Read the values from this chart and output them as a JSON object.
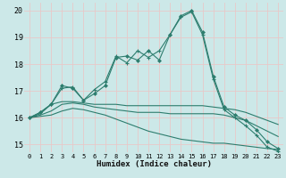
{
  "xlabel": "Humidex (Indice chaleur)",
  "background_color": "#cce8e8",
  "grid_color": "#e8c8c8",
  "line_color": "#2d7d6e",
  "xlim": [
    -0.5,
    23.5
  ],
  "ylim": [
    14.7,
    20.3
  ],
  "yticks": [
    15,
    16,
    17,
    18,
    19,
    20
  ],
  "xticks": [
    0,
    1,
    2,
    3,
    4,
    5,
    6,
    7,
    8,
    9,
    10,
    11,
    12,
    13,
    14,
    15,
    16,
    17,
    18,
    19,
    20,
    21,
    22,
    23
  ],
  "line1_x": [
    0,
    1,
    2,
    3,
    4,
    5,
    6,
    7,
    8,
    9,
    10,
    11,
    12,
    13,
    14,
    15,
    16,
    17,
    18,
    19,
    20,
    21,
    22,
    23
  ],
  "line1_y": [
    16.0,
    16.2,
    16.5,
    17.1,
    17.15,
    16.65,
    17.05,
    17.35,
    18.3,
    18.05,
    18.5,
    18.25,
    18.5,
    19.1,
    19.75,
    19.95,
    19.1,
    17.45,
    16.3,
    16.0,
    15.7,
    15.35,
    14.9,
    14.75
  ],
  "line1_has_markers": true,
  "line1_marker": "+",
  "line2_x": [
    0,
    1,
    2,
    3,
    4,
    5,
    6,
    7,
    8,
    9,
    10,
    11,
    12,
    13,
    14,
    15,
    16,
    17,
    18,
    19,
    20,
    21,
    22,
    23
  ],
  "line2_y": [
    16.0,
    16.2,
    16.5,
    17.2,
    17.1,
    16.65,
    16.9,
    17.2,
    18.25,
    18.3,
    18.15,
    18.5,
    18.15,
    19.1,
    19.8,
    20.0,
    19.2,
    17.55,
    16.4,
    16.1,
    15.9,
    15.55,
    15.1,
    14.85
  ],
  "line2_has_markers": true,
  "line2_marker": "D",
  "line3_x": [
    0,
    1,
    2,
    3,
    4,
    5,
    6,
    7,
    8,
    9,
    10,
    11,
    12,
    13,
    14,
    15,
    16,
    17,
    18,
    19,
    20,
    21,
    22,
    23
  ],
  "line3_y": [
    16.0,
    16.15,
    16.5,
    16.6,
    16.6,
    16.55,
    16.5,
    16.5,
    16.5,
    16.45,
    16.45,
    16.45,
    16.45,
    16.45,
    16.45,
    16.45,
    16.45,
    16.4,
    16.35,
    16.3,
    16.2,
    16.05,
    15.9,
    15.75
  ],
  "line3_has_markers": false,
  "line4_x": [
    0,
    1,
    2,
    3,
    4,
    5,
    6,
    7,
    8,
    9,
    10,
    11,
    12,
    13,
    14,
    15,
    16,
    17,
    18,
    19,
    20,
    21,
    22,
    23
  ],
  "line4_y": [
    16.0,
    16.1,
    16.25,
    16.5,
    16.55,
    16.5,
    16.4,
    16.35,
    16.3,
    16.25,
    16.2,
    16.2,
    16.2,
    16.15,
    16.15,
    16.15,
    16.15,
    16.15,
    16.1,
    16.0,
    15.9,
    15.7,
    15.5,
    15.3
  ],
  "line4_has_markers": false,
  "line5_x": [
    0,
    1,
    2,
    3,
    4,
    5,
    6,
    7,
    8,
    9,
    10,
    11,
    12,
    13,
    14,
    15,
    16,
    17,
    18,
    19,
    20,
    21,
    22,
    23
  ],
  "line5_y": [
    16.0,
    16.05,
    16.1,
    16.25,
    16.35,
    16.3,
    16.2,
    16.1,
    15.95,
    15.8,
    15.65,
    15.5,
    15.4,
    15.3,
    15.2,
    15.15,
    15.1,
    15.05,
    15.05,
    15.0,
    14.95,
    14.9,
    14.85,
    14.82
  ],
  "line5_has_markers": false,
  "line5_dashed": true
}
